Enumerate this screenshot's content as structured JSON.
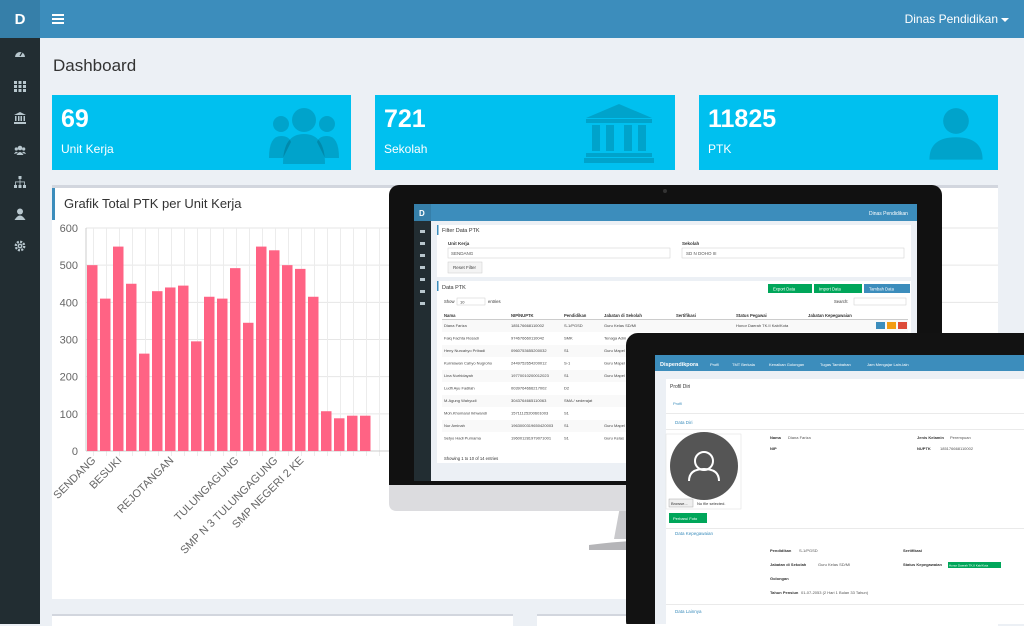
{
  "header": {
    "logo": "D",
    "user_menu": "Dinas Pendidikan"
  },
  "sidebar": {
    "icons": [
      "dashboard-icon",
      "grid-icon",
      "bank-icon",
      "users-icon",
      "sitemap-icon",
      "user-icon",
      "gear-icon"
    ]
  },
  "page": {
    "title": "Dashboard"
  },
  "stats": [
    {
      "value": "69",
      "label": "Unit Kerja",
      "icon": "users-icon"
    },
    {
      "value": "721",
      "label": "Sekolah",
      "icon": "bank-icon"
    },
    {
      "value": "11825",
      "label": "PTK",
      "icon": "user-icon"
    }
  ],
  "colors": {
    "topbar": "#3c8dbc",
    "sidebar": "#222d32",
    "stat_box": "#00c0ef",
    "bar": "#ff6384"
  },
  "chart_data": {
    "type": "bar",
    "title": "Grafik Total PTK per Unit Kerja",
    "xlabel": "",
    "ylabel": "",
    "ylim": [
      0,
      600
    ],
    "yticks": [
      0,
      100,
      200,
      300,
      400,
      500,
      600
    ],
    "categories": [
      "SENDANG",
      "",
      "BESUKI",
      "",
      "",
      "",
      "REJOTANGAN",
      "",
      "",
      "",
      "",
      "TULUNGAGUNG",
      "",
      "",
      "SMP N 3 TULUNGAGUNG",
      "",
      "SMP NEGERI 2 KE",
      "",
      "",
      "",
      "",
      ""
    ],
    "x_tick_labels": [
      "SENDANG",
      "BESUKI",
      "REJOTANGAN",
      "TULUNGAGUNG",
      "SMP N 3 TULUNGAGUNG",
      "SMP NEGERI 2 KE"
    ],
    "values": [
      500,
      410,
      550,
      450,
      262,
      430,
      440,
      445,
      295,
      415,
      410,
      492,
      345,
      550,
      540,
      500,
      490,
      415,
      107,
      88,
      95,
      95
    ],
    "grid": true
  },
  "devices": {
    "monitor": {
      "logo": "D",
      "user": "Dinas Pendidikan",
      "filter_title": "Filter Data PTK",
      "unit_kerja_label": "Unit Kerja",
      "unit_kerja_value": "SENDANG",
      "sekolah_label": "Sekolah",
      "sekolah_value": "SD N DOHO III",
      "reset_button": "Reset Filter",
      "data_title": "Data PTK",
      "export_button": "Export Data",
      "import_button": "Import Data",
      "add_button": "Tambah Data",
      "show_label": "Show",
      "show_value": "10",
      "entries_label": "entries",
      "search_label": "Search:",
      "columns": [
        "Nama",
        "NIP/NUPTK",
        "Pendidikan",
        "Jabatan di Sekolah",
        "Sertifikasi",
        "Status Pegawai",
        "Jabatan Kepegawaian"
      ],
      "rows": [
        [
          "Diana Fariza",
          "185176668110002",
          "S-1/PGSD",
          "Guru Kelas SD/MI",
          "",
          "Honor Daerah TK.II Kab/Kota",
          ""
        ],
        [
          "Faiq Fachta Rosadi",
          "974676660110042",
          "SMK",
          "Tenaga Adm",
          "",
          "",
          ""
        ],
        [
          "Heny Nurcahyo Pribadi",
          "0960753655200032",
          "S1",
          "Guru Mapel",
          "",
          "",
          ""
        ],
        [
          "Kurniawan Cahyo Nugroho",
          "2449752654200012",
          "S-1",
          "Guru Mapel",
          "",
          "",
          ""
        ],
        [
          "Lina Nurhidayah",
          "19770010200012023",
          "S1",
          "Guru Mapel",
          "",
          "",
          ""
        ],
        [
          "Ludfi Ayu Fadilah",
          "0039764666217002",
          "D2",
          "",
          "",
          "",
          ""
        ],
        [
          "M.Agung Wahyudi",
          "3043764665110063",
          "SMA / sederajat",
          "",
          "",
          "",
          ""
        ],
        [
          "Moh.Khomarul Ikhwandi",
          "15711125200601003",
          "S1",
          "",
          "",
          "",
          ""
        ],
        [
          "Nur Aminah",
          "1963000319650420003",
          "S1",
          "Guru Mapel",
          "",
          "",
          ""
        ],
        [
          "Setyo Hadi Purnama",
          "196001281979071001",
          "S1",
          "Guru Kelas",
          "",
          "",
          ""
        ]
      ],
      "info": "Showing 1 to 10 of 14 entries"
    },
    "laptop": {
      "brand": "Dispendikpora",
      "menu": [
        "Profil",
        "TMT Berkala",
        "Kenaikan Golongan",
        "Tugas Tambahan",
        "Jam Mengajar Lain-lain"
      ],
      "section_title": "Profil Diri",
      "breadcrumb": "Profil",
      "data_diri": "Data Diri",
      "nama_label": "Nama",
      "nama_value": "Diana Fariza",
      "jk_label": "Jenis Kelamin",
      "jk_value": "Perempuan",
      "nip_label": "NIP",
      "nuptk_label": "NUPTK",
      "nuptk_value": "185176668110002",
      "browse_button": "Browse...",
      "no_file": "No file selected.",
      "update_photo": "Perbarui Foto",
      "kepegawaian": "Data Kepegawaian",
      "pendidikan_label": "Pendidikan",
      "pendidikan_value": "S-1/PGSD",
      "sertifikasi_label": "Sertifikasi",
      "jabatan_label": "Jabatan di Sekolah",
      "jabatan_value": "Guru Kelas SD/MI",
      "status_label": "Status Kepegawaian",
      "status_value": "Honor Daerah TK.II Kab/Kota",
      "golongan_label": "Golongan",
      "pensiun_label": "Tahun Pensiun",
      "pensiun_value": "01-07-2053 (2 Hari 1 Bulan 33 Tahun)",
      "lainnya": "Data Lainnya"
    }
  }
}
